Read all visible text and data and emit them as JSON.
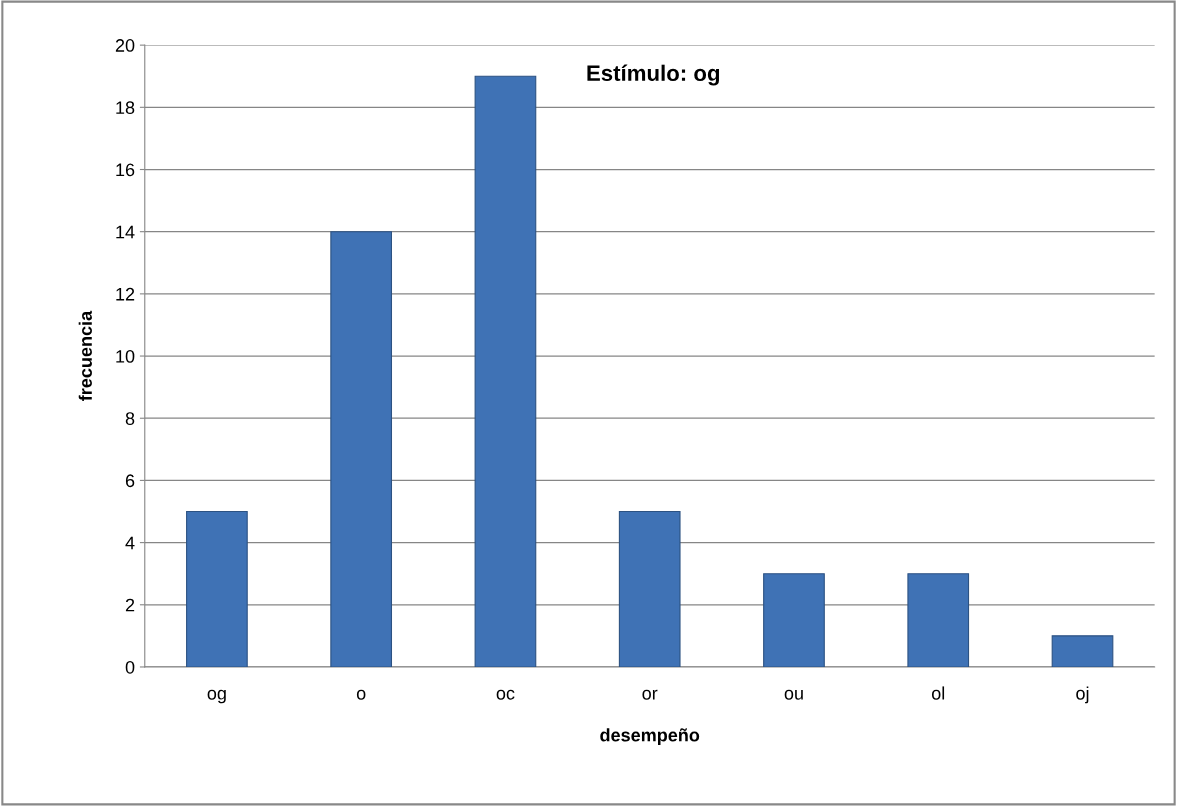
{
  "chart_data": {
    "type": "bar",
    "title": "Estímulo: og",
    "xlabel": "desempeño",
    "ylabel": "frecuencia",
    "categories": [
      "og",
      "o",
      "oc",
      "or",
      "ou",
      "ol",
      "oj"
    ],
    "values": [
      5,
      14,
      19,
      5,
      3,
      3,
      1
    ],
    "color": "#3f72b5",
    "ylim": [
      0,
      20
    ],
    "yticks": [
      0,
      2,
      4,
      6,
      8,
      10,
      12,
      14,
      16,
      18,
      20
    ],
    "grid": "y",
    "legend": false
  }
}
